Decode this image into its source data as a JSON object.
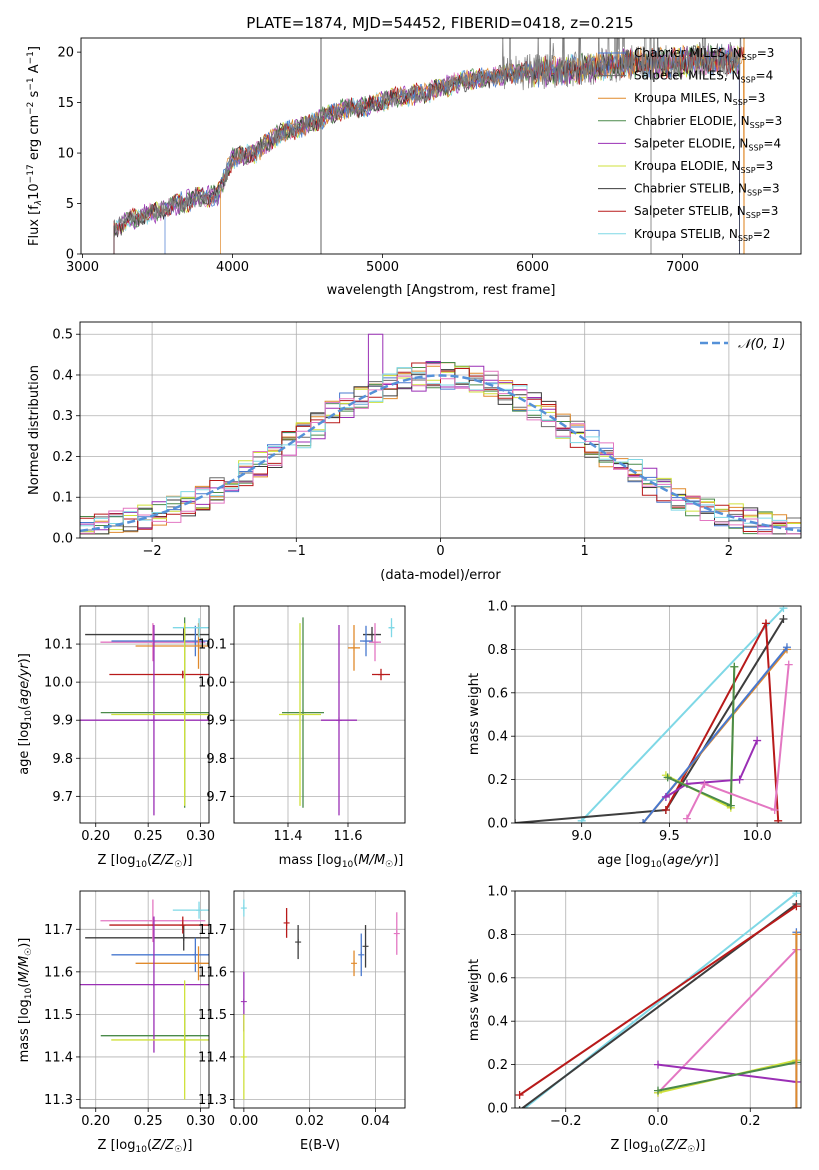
{
  "figure": {
    "title": "PLATE=1874, MJD=54452, FIBERID=0418, z=0.215"
  },
  "colors": {
    "chabrier_miles": "#4878cf",
    "salpeter_miles": "#6b6b6b",
    "kroupa_miles": "#e08a2c",
    "chabrier_elodie": "#4a8a4a",
    "salpeter_elodie": "#9a2fb5",
    "kroupa_elodie": "#cfe13b",
    "chabrier_stelib": "#3d3d3d",
    "salpeter_stelib": "#b81a1a",
    "kroupa_stelib": "#7fd8e6",
    "pink": "#e377c2",
    "normal_curve": "#5591d8"
  },
  "chart_data": [
    {
      "type": "line",
      "panel": "spectrum",
      "xlabel": "wavelength [Angstrom, rest frame]",
      "ylabel": "Flux [f_λ 10^-17 erg cm^-2 s^-1 A^-1]",
      "ylabel_parts": {
        "a": "Flux [f",
        "b": "λ",
        "c": "10",
        "d": "−17",
        "e": " erg cm",
        "f": "−2",
        "g": " s",
        "h": "−1",
        "i": " A",
        "j": "−1",
        "k": "]"
      },
      "xlim": [
        2990,
        7790
      ],
      "ylim": [
        0,
        21.4
      ],
      "xticks": [
        3000,
        4000,
        5000,
        6000,
        7000
      ],
      "yticks": [
        0,
        5,
        10,
        15,
        20
      ],
      "continuum": {
        "x": [
          3210,
          3300,
          3450,
          3600,
          3750,
          3900,
          4000,
          4150,
          4300,
          4500,
          4700,
          4900,
          5100,
          5300,
          5500,
          5700,
          5900,
          6100,
          6300,
          6500,
          6700,
          6900,
          7100,
          7300,
          7400
        ],
        "y": [
          2.5,
          3.3,
          4.0,
          4.8,
          5.5,
          5.8,
          9.5,
          10.0,
          11.8,
          12.8,
          14.2,
          14.6,
          15.6,
          16.0,
          17.0,
          17.5,
          18.0,
          18.1,
          18.3,
          18.7,
          19.0,
          18.9,
          19.2,
          19.3,
          19.0
        ]
      },
      "legend": [
        {
          "label": "Chabrier MILES, N",
          "sub": "SSP",
          "tail": "=3",
          "color_key": "chabrier_miles"
        },
        {
          "label": "Salpeter MILES, N",
          "sub": "SSP",
          "tail": "=4",
          "color_key": "salpeter_miles"
        },
        {
          "label": "Kroupa MILES, N",
          "sub": "SSP",
          "tail": "=3",
          "color_key": "kroupa_miles"
        },
        {
          "label": "Chabrier ELODIE, N",
          "sub": "SSP",
          "tail": "=3",
          "color_key": "chabrier_elodie"
        },
        {
          "label": "Salpeter ELODIE, N",
          "sub": "SSP",
          "tail": "=4",
          "color_key": "salpeter_elodie"
        },
        {
          "label": "Kroupa ELODIE, N",
          "sub": "SSP",
          "tail": "=3",
          "color_key": "kroupa_elodie"
        },
        {
          "label": "Chabrier STELIB, N",
          "sub": "SSP",
          "tail": "=3",
          "color_key": "chabrier_stelib"
        },
        {
          "label": "Salpeter STELIB, N",
          "sub": "SSP",
          "tail": "=3",
          "color_key": "salpeter_stelib"
        },
        {
          "label": "Kroupa STELIB, N",
          "sub": "SSP",
          "tail": "=2",
          "color_key": "kroupa_stelib"
        }
      ]
    },
    {
      "type": "bar",
      "panel": "residuals",
      "xlabel": "(data-model)/error",
      "ylabel": "Normed distribution",
      "xlim": [
        -2.5,
        2.5
      ],
      "ylim": [
        0,
        0.53
      ],
      "xticks": [
        -2,
        -1,
        0,
        1,
        2
      ],
      "xtick_labels": [
        "−2",
        "−1",
        "0",
        "1",
        "2"
      ],
      "yticks": [
        0.0,
        0.1,
        0.2,
        0.3,
        0.4,
        0.5
      ],
      "ytick_labels": [
        "0.0",
        "0.1",
        "0.2",
        "0.3",
        "0.4",
        "0.5"
      ],
      "grid": true,
      "legend_label": "N(0,1)",
      "legend_position": "top-right",
      "bin_width": 0.1,
      "bin_start": -2.5
    },
    {
      "type": "scatter",
      "panel": "age-vs-Z",
      "xlabel": "Z [log10(Z/Z☉)]",
      "ylabel": "age [log10(age/yr)]",
      "xlim": [
        0.185,
        0.308
      ],
      "ylim": [
        9.63,
        10.2
      ],
      "xticks": [
        0.2,
        0.25,
        0.3
      ],
      "xtick_labels": [
        "0.20",
        "0.25",
        "0.30"
      ],
      "yticks": [
        9.7,
        9.8,
        9.9,
        10.0,
        10.1
      ],
      "ytick_labels": [
        "9.7",
        "9.8",
        "9.9",
        "10.0",
        "10.1"
      ],
      "points": [
        {
          "x": 0.2839,
          "y": 10.125,
          "xerr": 0.094,
          "yerr": 0.02,
          "color_key": "chabrier_stelib"
        },
        {
          "x": 0.2545,
          "y": 10.105,
          "xerr": 0.05,
          "yerr": 0.05,
          "color_key": "pink"
        },
        {
          "x": 0.295,
          "y": 10.108,
          "xerr": 0.08,
          "yerr": 0.04,
          "color_key": "chabrier_miles"
        },
        {
          "x": 0.298,
          "y": 10.095,
          "xerr": 0.06,
          "yerr": 0.06,
          "color_key": "kroupa_miles"
        },
        {
          "x": 0.283,
          "y": 10.02,
          "xerr": 0.07,
          "yerr": 0.01,
          "color_key": "salpeter_stelib"
        },
        {
          "x": 0.2985,
          "y": 10.143,
          "xerr": 0.025,
          "yerr": 0.025,
          "color_key": "kroupa_stelib"
        },
        {
          "x": 0.2848,
          "y": 9.92,
          "xerr": 0.08,
          "yerr": 0.25,
          "color_key": "chabrier_elodie"
        },
        {
          "x": 0.2555,
          "y": 9.9,
          "xerr": 0.1,
          "yerr": 0.25,
          "color_key": "salpeter_elodie"
        },
        {
          "x": 0.2848,
          "y": 9.915,
          "xerr": 0.07,
          "yerr": 0.24,
          "color_key": "kroupa_elodie"
        }
      ]
    },
    {
      "type": "scatter",
      "panel": "age-vs-mass",
      "xlabel": "mass [log10(M/M☉)]",
      "xlim": [
        11.22,
        11.79
      ],
      "ylim": [
        9.63,
        10.2
      ],
      "xticks": [
        11.4,
        11.6
      ],
      "xtick_labels": [
        "11.4",
        "11.6"
      ],
      "yticks": [
        9.7,
        9.8,
        9.9,
        10.0,
        10.1
      ],
      "ytick_labels": [
        "9.7",
        "9.8",
        "9.9",
        "10.0",
        "10.1"
      ],
      "points": [
        {
          "x": 11.68,
          "y": 10.125,
          "xerr": 0.03,
          "yerr": 0.02,
          "color_key": "chabrier_stelib"
        },
        {
          "x": 11.69,
          "y": 10.105,
          "xerr": 0.02,
          "yerr": 0.05,
          "color_key": "pink"
        },
        {
          "x": 11.66,
          "y": 10.108,
          "xerr": 0.02,
          "yerr": 0.04,
          "color_key": "chabrier_miles"
        },
        {
          "x": 11.62,
          "y": 10.09,
          "xerr": 0.02,
          "yerr": 0.06,
          "color_key": "kroupa_miles"
        },
        {
          "x": 11.71,
          "y": 10.02,
          "xerr": 0.03,
          "yerr": 0.015,
          "color_key": "salpeter_stelib"
        },
        {
          "x": 11.745,
          "y": 10.143,
          "xerr": 0.01,
          "yerr": 0.025,
          "color_key": "kroupa_stelib"
        },
        {
          "x": 11.45,
          "y": 9.92,
          "xerr": 0.07,
          "yerr": 0.25,
          "color_key": "chabrier_elodie"
        },
        {
          "x": 11.57,
          "y": 9.9,
          "xerr": 0.06,
          "yerr": 0.25,
          "color_key": "salpeter_elodie"
        },
        {
          "x": 11.44,
          "y": 9.915,
          "xerr": 0.07,
          "yerr": 0.24,
          "color_key": "kroupa_elodie"
        }
      ]
    },
    {
      "type": "line",
      "panel": "weight-vs-age",
      "xlabel": "age [log10(age/yr)]",
      "ylabel": "mass weight",
      "xlim": [
        8.62,
        10.25
      ],
      "ylim": [
        0,
        1.0
      ],
      "xticks": [
        9.0,
        9.5,
        10.0
      ],
      "xtick_labels": [
        "9.0",
        "9.5",
        "10.0"
      ],
      "yticks": [
        0.0,
        0.2,
        0.4,
        0.6,
        0.8,
        1.0
      ],
      "ytick_labels": [
        "0.0",
        "0.2",
        "0.4",
        "0.6",
        "0.8",
        "1.0"
      ],
      "series": [
        {
          "color_key": "kroupa_stelib",
          "x": [
            9.0,
            10.15
          ],
          "y": [
            0.01,
            0.99
          ]
        },
        {
          "color_key": "chabrier_stelib",
          "x": [
            8.62,
            9.48,
            10.15
          ],
          "y": [
            0.0,
            0.06,
            0.94
          ]
        },
        {
          "color_key": "salpeter_stelib",
          "x": [
            9.48,
            10.05,
            10.12
          ],
          "y": [
            0.06,
            0.92,
            0.01
          ]
        },
        {
          "color_key": "kroupa_miles",
          "x": [
            9.35,
            10.17
          ],
          "y": [
            0.0,
            0.8
          ]
        },
        {
          "color_key": "chabrier_miles",
          "x": [
            9.35,
            10.17
          ],
          "y": [
            0.0,
            0.81
          ]
        },
        {
          "color_key": "salpeter_elodie",
          "x": [
            9.48,
            9.6,
            9.9,
            10.0
          ],
          "y": [
            0.12,
            0.18,
            0.2,
            0.38
          ]
        },
        {
          "color_key": "kroupa_elodie",
          "x": [
            9.48,
            9.85,
            9.87
          ],
          "y": [
            0.22,
            0.07,
            0.72
          ]
        },
        {
          "color_key": "chabrier_elodie",
          "x": [
            9.49,
            9.85,
            9.87
          ],
          "y": [
            0.21,
            0.08,
            0.72
          ]
        },
        {
          "color_key": "pink",
          "x": [
            9.6,
            9.7,
            10.1,
            10.18
          ],
          "y": [
            0.02,
            0.18,
            0.06,
            0.73
          ]
        }
      ]
    },
    {
      "type": "scatter",
      "panel": "mass-vs-Z",
      "xlabel": "Z [log10(Z/Z☉)]",
      "ylabel": "mass [log10(M/M☉)]",
      "xlim": [
        0.185,
        0.308
      ],
      "ylim": [
        11.28,
        11.79
      ],
      "xticks": [
        0.2,
        0.25,
        0.3
      ],
      "xtick_labels": [
        "0.20",
        "0.25",
        "0.30"
      ],
      "yticks": [
        11.3,
        11.4,
        11.5,
        11.6,
        11.7
      ],
      "ytick_labels": [
        "11.3",
        "11.4",
        "11.5",
        "11.6",
        "11.7"
      ],
      "points": [
        {
          "x": 0.2839,
          "y": 11.68,
          "xerr": 0.094,
          "yerr": 0.03,
          "color_key": "chabrier_stelib"
        },
        {
          "x": 0.2545,
          "y": 11.72,
          "xerr": 0.05,
          "yerr": 0.05,
          "color_key": "pink"
        },
        {
          "x": 0.295,
          "y": 11.64,
          "xerr": 0.08,
          "yerr": 0.04,
          "color_key": "chabrier_miles"
        },
        {
          "x": 0.298,
          "y": 11.62,
          "xerr": 0.06,
          "yerr": 0.04,
          "color_key": "kroupa_miles"
        },
        {
          "x": 0.283,
          "y": 11.71,
          "xerr": 0.07,
          "yerr": 0.02,
          "color_key": "salpeter_stelib"
        },
        {
          "x": 0.2985,
          "y": 11.745,
          "xerr": 0.025,
          "yerr": 0.02,
          "color_key": "kroupa_stelib"
        },
        {
          "x": 0.2848,
          "y": 11.45,
          "xerr": 0.08,
          "yerr": 0.05,
          "color_key": "chabrier_elodie"
        },
        {
          "x": 0.2555,
          "y": 11.57,
          "xerr": 0.1,
          "yerr": 0.16,
          "color_key": "salpeter_elodie"
        },
        {
          "x": 0.2848,
          "y": 11.44,
          "xerr": 0.07,
          "yerr": 0.14,
          "color_key": "kroupa_elodie"
        }
      ]
    },
    {
      "type": "scatter",
      "panel": "mass-vs-EBV",
      "xlabel": "E(B-V)",
      "xlim": [
        -0.003,
        0.049
      ],
      "ylim": [
        11.28,
        11.79
      ],
      "xticks": [
        0.0,
        0.02,
        0.04
      ],
      "xtick_labels": [
        "0.00",
        "0.02",
        "0.04"
      ],
      "yticks": [
        11.3,
        11.4,
        11.5,
        11.6,
        11.7
      ],
      "ytick_labels": [
        "11.3",
        "11.4",
        "11.5",
        "11.6",
        "11.7"
      ],
      "points": [
        {
          "x": 0.0,
          "y": 11.53,
          "yerr": 0.07,
          "color_key": "salpeter_elodie"
        },
        {
          "x": 0.0,
          "y": 11.4,
          "yerr": 0.1,
          "color_key": "kroupa_elodie"
        },
        {
          "x": 0.0,
          "y": 11.75,
          "yerr": 0.02,
          "color_key": "kroupa_stelib"
        },
        {
          "x": 0.013,
          "y": 11.715,
          "yerr": 0.035,
          "color_key": "salpeter_stelib"
        },
        {
          "x": 0.0165,
          "y": 11.67,
          "yerr": 0.04,
          "color_key": "chabrier_stelib"
        },
        {
          "x": 0.0335,
          "y": 11.62,
          "yerr": 0.03,
          "color_key": "kroupa_miles"
        },
        {
          "x": 0.0357,
          "y": 11.64,
          "yerr": 0.05,
          "color_key": "chabrier_miles"
        },
        {
          "x": 0.037,
          "y": 11.66,
          "yerr": 0.05,
          "color_key": "chabrier_stelib"
        },
        {
          "x": 0.0465,
          "y": 11.69,
          "yerr": 0.05,
          "color_key": "pink"
        }
      ]
    },
    {
      "type": "line",
      "panel": "weight-vs-Z",
      "xlabel": "Z [log10(Z/Z☉)]",
      "ylabel": "mass weight",
      "xlim": [
        -0.31,
        0.31
      ],
      "ylim": [
        0,
        1.0
      ],
      "xticks": [
        -0.2,
        0.0,
        0.2
      ],
      "xtick_labels": [
        "−0.2",
        "0.0",
        "0.2"
      ],
      "yticks": [
        0.0,
        0.2,
        0.4,
        0.6,
        0.8,
        1.0
      ],
      "ytick_labels": [
        "0.0",
        "0.2",
        "0.4",
        "0.6",
        "0.8",
        "1.0"
      ],
      "series": [
        {
          "color_key": "kroupa_stelib",
          "x": [
            -0.3,
            0.3
          ],
          "y": [
            -0.02,
            0.99
          ]
        },
        {
          "color_key": "chabrier_stelib",
          "x": [
            -0.3,
            0.3
          ],
          "y": [
            -0.01,
            0.94
          ]
        },
        {
          "color_key": "salpeter_stelib",
          "x": [
            -0.3,
            0.3
          ],
          "y": [
            0.06,
            0.93
          ]
        },
        {
          "color_key": "pink",
          "x": [
            0.0,
            0.3
          ],
          "y": [
            0.07,
            0.73
          ]
        },
        {
          "color_key": "salpeter_elodie",
          "x": [
            0.0,
            0.3
          ],
          "y": [
            0.2,
            0.12
          ]
        },
        {
          "color_key": "kroupa_elodie",
          "x": [
            0.0,
            0.3
          ],
          "y": [
            0.07,
            0.22
          ]
        },
        {
          "color_key": "chabrier_elodie",
          "x": [
            0.0,
            0.3
          ],
          "y": [
            0.08,
            0.21
          ]
        },
        {
          "color_key": "chabrier_miles",
          "x": [
            0.3,
            0.3
          ],
          "y": [
            0.0,
            0.81
          ]
        },
        {
          "color_key": "kroupa_miles",
          "x": [
            0.3,
            0.3
          ],
          "y": [
            0.0,
            0.8
          ]
        }
      ]
    }
  ]
}
